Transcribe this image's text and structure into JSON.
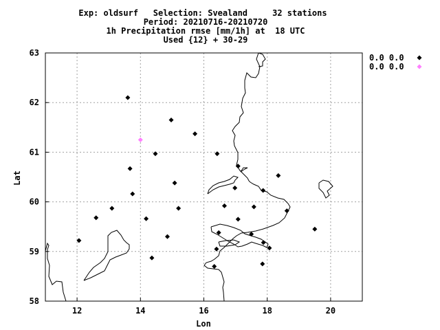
{
  "chart_data": {
    "type": "scatter",
    "title_lines": [
      "Exp: oldsurf   Selection: Svealand     32 stations",
      "Period: 20210716-20210720",
      "1h Precipitation rmse [mm/1h] at  18 UTC",
      "Used {12} + 30-29"
    ],
    "xlabel": "Lon",
    "ylabel": "Lat",
    "xlim": [
      11,
      21
    ],
    "ylim": [
      58,
      63
    ],
    "xticks": [
      12,
      14,
      16,
      18,
      20
    ],
    "yticks": [
      58,
      59,
      60,
      61,
      62,
      63
    ],
    "grid": true,
    "legend_position": "outside-right",
    "series": [
      {
        "name": "0.0 0.0",
        "color": "#000000",
        "points": [
          [
            13.6,
            62.1
          ],
          [
            14.97,
            61.65
          ],
          [
            15.72,
            61.37
          ],
          [
            14.47,
            60.97
          ],
          [
            16.42,
            60.97
          ],
          [
            13.67,
            60.67
          ],
          [
            17.08,
            60.72
          ],
          [
            15.08,
            60.38
          ],
          [
            13.75,
            60.16
          ],
          [
            16.98,
            60.28
          ],
          [
            17.87,
            60.23
          ],
          [
            18.35,
            60.53
          ],
          [
            13.1,
            59.87
          ],
          [
            15.2,
            59.87
          ],
          [
            16.65,
            59.92
          ],
          [
            17.58,
            59.9
          ],
          [
            12.6,
            59.68
          ],
          [
            14.18,
            59.66
          ],
          [
            17.08,
            59.65
          ],
          [
            18.62,
            59.82
          ],
          [
            14.85,
            59.3
          ],
          [
            16.47,
            59.38
          ],
          [
            17.5,
            59.35
          ],
          [
            19.5,
            59.45
          ],
          [
            12.06,
            59.22
          ],
          [
            17.88,
            59.18
          ],
          [
            16.4,
            59.05
          ],
          [
            18.07,
            59.07
          ],
          [
            14.36,
            58.87
          ],
          [
            16.33,
            58.7
          ],
          [
            17.85,
            58.75
          ]
        ]
      },
      {
        "name": "0.0 0.0",
        "color": "#ff80ff",
        "points": [
          [
            14.0,
            61.25
          ]
        ]
      }
    ]
  }
}
